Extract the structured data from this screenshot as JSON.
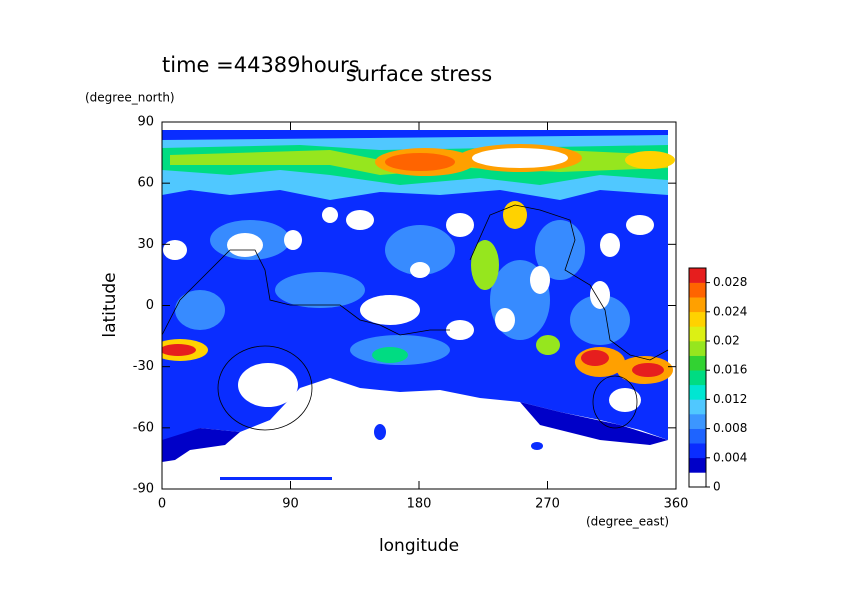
{
  "chart_data": {
    "type": "contour",
    "title": "surface stress",
    "subtitle": "time =44389hours",
    "x_label": "longitude",
    "x_units": "(degree_east)",
    "y_label": "latitude",
    "y_units": "(degree_north)",
    "xlim": [
      0,
      360
    ],
    "xticks": [
      0,
      90,
      180,
      270,
      360
    ],
    "ylim": [
      -90,
      90
    ],
    "yticks": [
      -90,
      -60,
      -30,
      0,
      30,
      60,
      90
    ],
    "clim": [
      0,
      0.03
    ],
    "cticks": [
      0,
      0.004,
      0.008,
      0.012,
      0.016,
      0.02,
      0.024,
      0.028
    ],
    "colormap": [
      "#ffffff",
      "#0000c8",
      "#0a2dff",
      "#1e64ff",
      "#3c96ff",
      "#50c8ff",
      "#00e6d2",
      "#00dc82",
      "#32d232",
      "#96e61e",
      "#dcf014",
      "#ffd200",
      "#ffa000",
      "#ff6400",
      "#e61e1e"
    ]
  }
}
